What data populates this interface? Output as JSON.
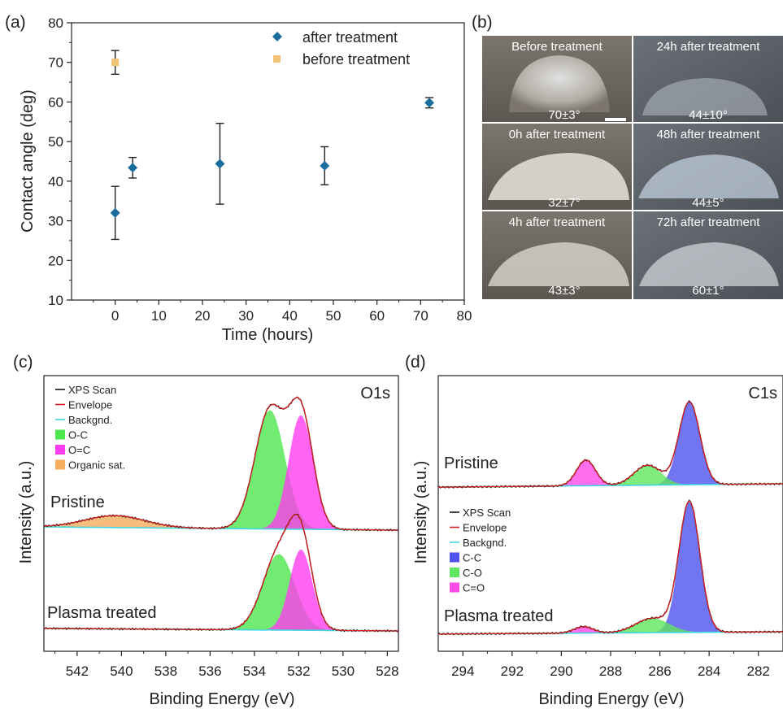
{
  "panel_labels": {
    "a": "(a)",
    "b": "(b)",
    "c": "(c)",
    "d": "(d)"
  },
  "colors": {
    "after": "#1a6e9e",
    "before": "#f2c477",
    "xps": "#111111",
    "envelope": "#d62020",
    "background": "#3fd6e0",
    "oc": "#4ee64e",
    "oeqc": "#ff3df0",
    "organic": "#f6ad5e",
    "cc": "#4f52ef",
    "co": "#5fe65f",
    "ceqo": "#ff4ae8"
  },
  "chart_data": [
    {
      "type": "scatter",
      "panel": "a",
      "xlabel": "Time (hours)",
      "ylabel": "Contact angle (deg)",
      "xlim": [
        -10,
        80
      ],
      "ylim": [
        10,
        80
      ],
      "xticks": [
        "0",
        "10",
        "20",
        "30",
        "40",
        "50",
        "60",
        "70",
        "80"
      ],
      "yticks": [
        "10",
        "20",
        "30",
        "40",
        "50",
        "60",
        "70",
        "80"
      ],
      "legend_position": "top-right",
      "series": [
        {
          "name": "after treatment",
          "marker": "diamond",
          "points": [
            {
              "x": 0,
              "y": 32,
              "err": 6.7
            },
            {
              "x": 4,
              "y": 43.4,
              "err": 2.6
            },
            {
              "x": 24,
              "y": 44.4,
              "err": 10.2
            },
            {
              "x": 48,
              "y": 43.9,
              "err": 4.8
            },
            {
              "x": 72,
              "y": 59.8,
              "err": 1.3
            }
          ]
        },
        {
          "name": "before treatment",
          "marker": "square",
          "points": [
            {
              "x": 0,
              "y": 70,
              "err": 3
            }
          ]
        }
      ]
    },
    {
      "type": "line",
      "panel": "c",
      "xlabel": "Binding Energy (eV)",
      "ylabel": "Intensity (a.u.)",
      "annotation": "O1s",
      "xlim": [
        543.5,
        527.5
      ],
      "xticks": [
        "542",
        "540",
        "538",
        "536",
        "534",
        "532",
        "530",
        "528"
      ],
      "legend": [
        "XPS Scan",
        "Envelope",
        "Backgnd.",
        "O-C",
        "O=C",
        "Organic sat."
      ],
      "spectra": [
        {
          "name": "Pristine",
          "peaks": [
            {
              "label": "O-C",
              "center": 533.3,
              "fwhm": 1.6,
              "height": 1.0
            },
            {
              "label": "O=C",
              "center": 531.9,
              "fwhm": 1.3,
              "height": 0.96
            },
            {
              "label": "Organic sat.",
              "center": 540.3,
              "fwhm": 3.2,
              "height": 0.1
            }
          ]
        },
        {
          "name": "Plasma treated",
          "peaks": [
            {
              "label": "O-C",
              "center": 532.9,
              "fwhm": 1.7,
              "height": 0.64
            },
            {
              "label": "O=C",
              "center": 531.9,
              "fwhm": 1.2,
              "height": 0.68
            }
          ]
        }
      ]
    },
    {
      "type": "line",
      "panel": "d",
      "xlabel": "Binding Energy (eV)",
      "ylabel": "Intensity (a.u.)",
      "annotation": "C1s",
      "xlim": [
        295,
        281
      ],
      "xticks": [
        "294",
        "292",
        "290",
        "288",
        "286",
        "284",
        "282"
      ],
      "legend": [
        "XPS Scan",
        "Envelope",
        "Backgnd.",
        "C-C",
        "C-O",
        "C=O"
      ],
      "spectra": [
        {
          "name": "Pristine",
          "peaks": [
            {
              "label": "C-C",
              "center": 284.8,
              "fwhm": 1.0,
              "height": 1.0
            },
            {
              "label": "C-O",
              "center": 286.5,
              "fwhm": 1.3,
              "height": 0.24
            },
            {
              "label": "C=O",
              "center": 289.0,
              "fwhm": 0.9,
              "height": 0.31
            }
          ]
        },
        {
          "name": "Plasma treated",
          "peaks": [
            {
              "label": "C-C",
              "center": 284.8,
              "fwhm": 1.0,
              "height": 1.0
            },
            {
              "label": "C-O",
              "center": 286.3,
              "fwhm": 1.6,
              "height": 0.11
            },
            {
              "label": "C=O",
              "center": 289.1,
              "fwhm": 0.9,
              "height": 0.05
            }
          ]
        }
      ]
    }
  ],
  "photos": [
    {
      "title": "Before treatment",
      "value": "70±3°"
    },
    {
      "title": "24h after treatment",
      "value": "44±10°"
    },
    {
      "title": "0h after treatment",
      "value": "32±7°"
    },
    {
      "title": "48h after treatment",
      "value": "44±5°"
    },
    {
      "title": "4h after treatment",
      "value": "43±3°"
    },
    {
      "title": "72h after treatment",
      "value": "60±1°"
    }
  ]
}
